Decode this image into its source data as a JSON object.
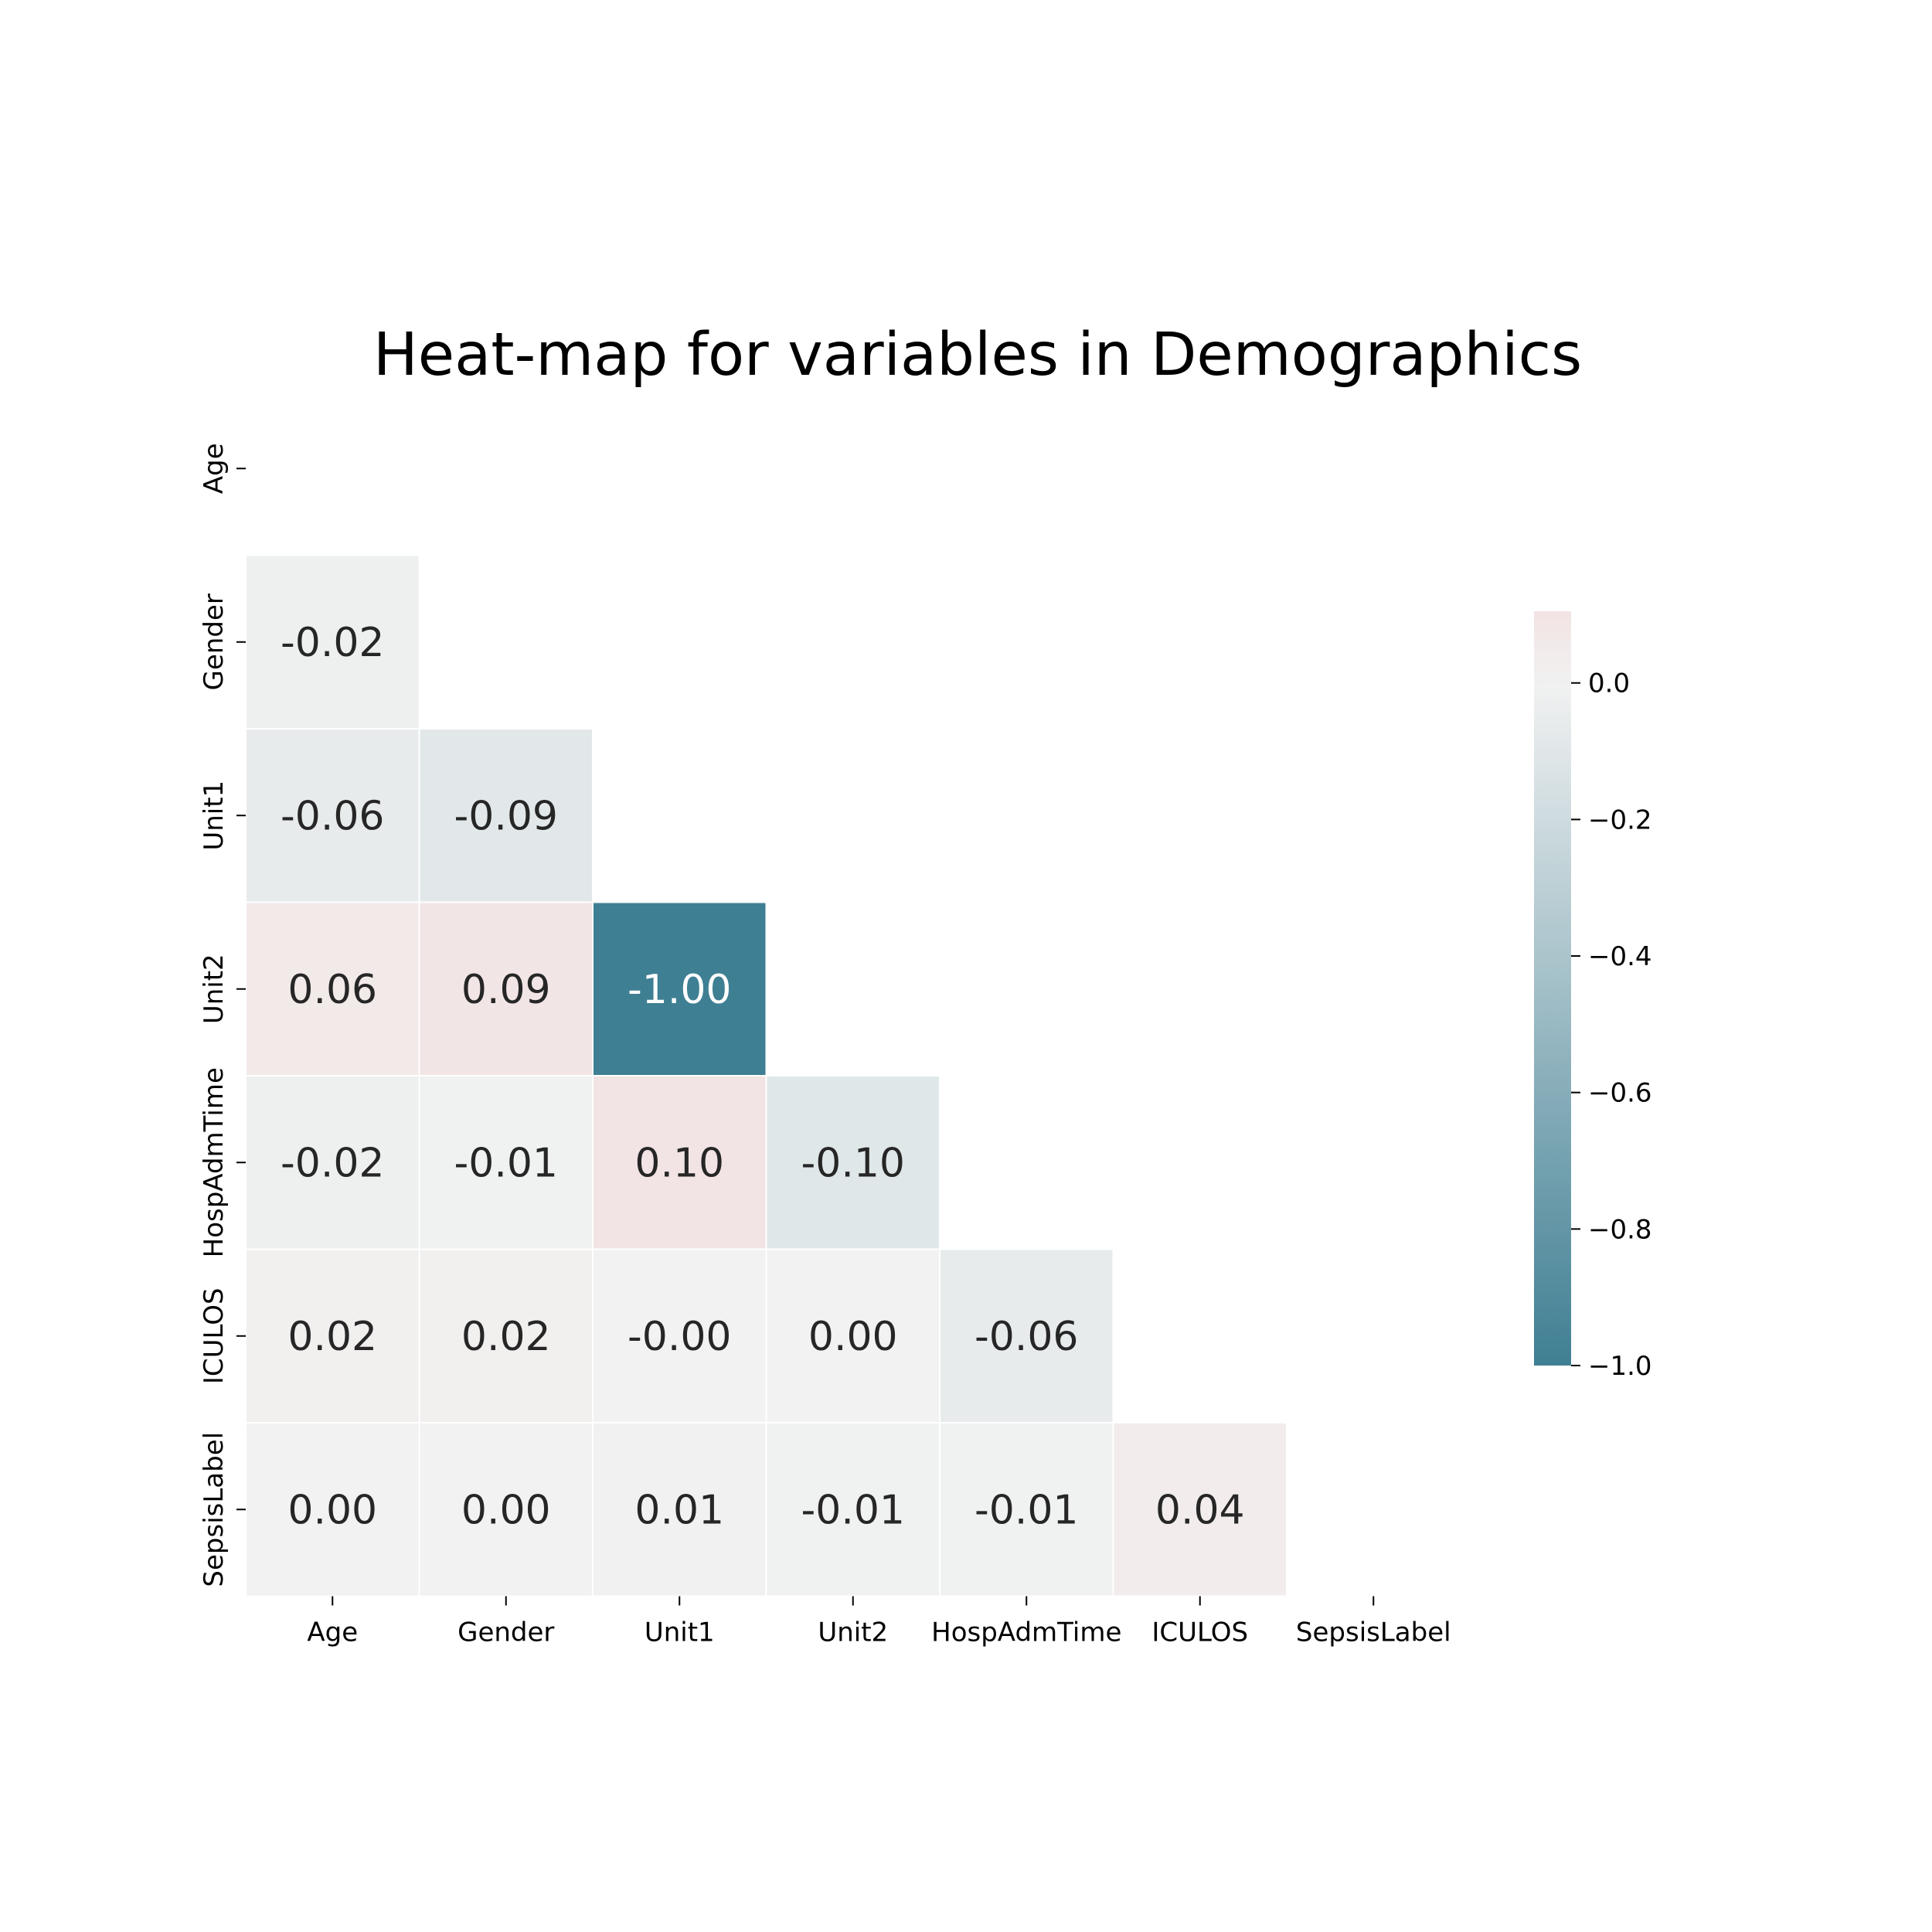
{
  "chart_data": {
    "type": "heatmap",
    "title": "Heat-map for variables in Demographics",
    "variables": [
      "Age",
      "Gender",
      "Unit1",
      "Unit2",
      "HospAdmTime",
      "ICULOS",
      "SepsisLabel"
    ],
    "mask": "upper-triangle-including-diagonal",
    "matrix": [
      [
        null,
        null,
        null,
        null,
        null,
        null,
        null
      ],
      [
        -0.02,
        null,
        null,
        null,
        null,
        null,
        null
      ],
      [
        -0.06,
        -0.09,
        null,
        null,
        null,
        null,
        null
      ],
      [
        0.06,
        0.09,
        -1.0,
        null,
        null,
        null,
        null
      ],
      [
        -0.02,
        -0.01,
        0.1,
        -0.1,
        null,
        null,
        null
      ],
      [
        0.02,
        0.02,
        -0.0,
        0.0,
        -0.06,
        null,
        null
      ],
      [
        0.0,
        0.0,
        0.01,
        -0.01,
        -0.01,
        0.04,
        null
      ]
    ],
    "labels": [
      [
        null,
        null,
        null,
        null,
        null,
        null,
        null
      ],
      [
        "-0.02",
        null,
        null,
        null,
        null,
        null,
        null
      ],
      [
        "-0.06",
        "-0.09",
        null,
        null,
        null,
        null,
        null
      ],
      [
        "0.06",
        "0.09",
        "-1.00",
        null,
        null,
        null,
        null
      ],
      [
        "-0.02",
        "-0.01",
        "0.10",
        "-0.10",
        null,
        null,
        null
      ],
      [
        "0.02",
        "0.02",
        "-0.00",
        "0.00",
        "-0.06",
        null,
        null
      ],
      [
        "0.00",
        "0.00",
        "0.01",
        "-0.01",
        "-0.01",
        "0.04",
        null
      ]
    ],
    "colorbar": {
      "vmin": -1.0,
      "vmax": 0.105,
      "ticks": [
        0.0,
        -0.2,
        -0.4,
        -0.6,
        -0.8,
        -1.0
      ],
      "tick_labels": [
        "0.0",
        "−0.2",
        "−0.4",
        "−0.6",
        "−0.8",
        "−1.0"
      ],
      "color_min": "#3f7f93",
      "color_zero": "#f2f2f2",
      "color_max": "#f2e3e3"
    },
    "cell_border_color": "#ffffff",
    "grid": false
  }
}
